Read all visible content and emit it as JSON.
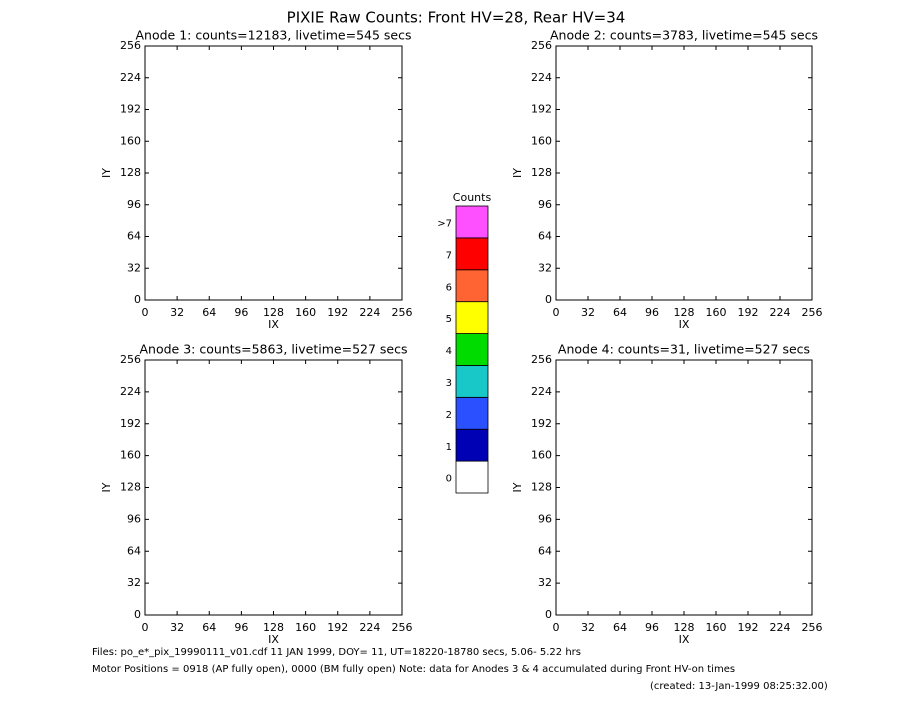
{
  "title": "PIXIE Raw Counts:  Front HV=28, Rear HV=34",
  "chart_data": [
    {
      "type": "image",
      "title": "Anode 1: counts=12183, livetime=545 secs",
      "x_label": "IX",
      "y_label": "IY",
      "xlim": [
        0,
        256
      ],
      "ylim": [
        0,
        256
      ],
      "xticks": [
        0,
        32,
        64,
        96,
        128,
        160,
        192,
        224,
        256
      ],
      "yticks": [
        0,
        32,
        64,
        96,
        128,
        160,
        192,
        224,
        256
      ]
    },
    {
      "type": "image",
      "title": "Anode 2: counts=3783, livetime=545 secs",
      "x_label": "IX",
      "y_label": "IY",
      "xlim": [
        0,
        256
      ],
      "ylim": [
        0,
        256
      ],
      "xticks": [
        0,
        32,
        64,
        96,
        128,
        160,
        192,
        224,
        256
      ],
      "yticks": [
        0,
        32,
        64,
        96,
        128,
        160,
        192,
        224,
        256
      ]
    },
    {
      "type": "image",
      "title": "Anode 3: counts=5863, livetime=527 secs",
      "x_label": "IX",
      "y_label": "IY",
      "xlim": [
        0,
        256
      ],
      "ylim": [
        0,
        256
      ],
      "xticks": [
        0,
        32,
        64,
        96,
        128,
        160,
        192,
        224,
        256
      ],
      "yticks": [
        0,
        32,
        64,
        96,
        128,
        160,
        192,
        224,
        256
      ]
    },
    {
      "type": "image",
      "title": "Anode 4: counts=31, livetime=527 secs",
      "x_label": "IX",
      "y_label": "IY",
      "xlim": [
        0,
        256
      ],
      "ylim": [
        0,
        256
      ],
      "xticks": [
        0,
        32,
        64,
        96,
        128,
        160,
        192,
        224,
        256
      ],
      "yticks": [
        0,
        32,
        64,
        96,
        128,
        160,
        192,
        224,
        256
      ]
    }
  ],
  "colorbar": {
    "title": "Counts",
    "labels": [
      "0",
      "1",
      "2",
      "3",
      "4",
      "5",
      "6",
      "7",
      ">7"
    ],
    "colors": [
      "#ffffff",
      "#0000b4",
      "#2a50ff",
      "#18c8c8",
      "#00dc00",
      "#ffff00",
      "#ff6432",
      "#ff0000",
      "#ff50ff"
    ]
  },
  "footer": {
    "files": "Files: po_e*_pix_19990111_v01.cdf    11 JAN 1999, DOY= 11, UT=18220-18780 secs,  5.06- 5.22 hrs",
    "motor": "Motor Positions = 0918 (AP fully open), 0000 (BM fully open)    Note: data for Anodes 3 & 4 accumulated during Front HV-on times",
    "created": "(created: 13-Jan-1999 08:25:32.00)"
  }
}
